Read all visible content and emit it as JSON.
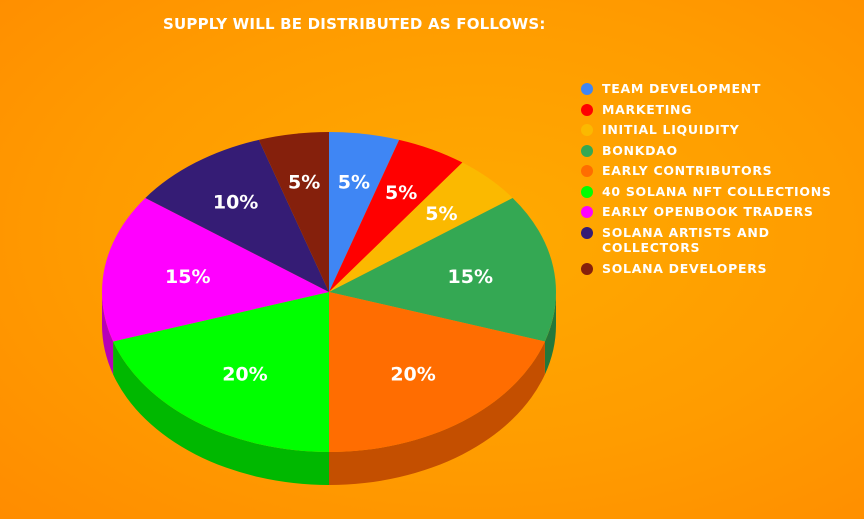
{
  "page": {
    "title": "SUPPLY WILL BE DISTRIBUTED AS FOLLOWS:"
  },
  "chart_data": {
    "type": "pie",
    "style": "3d",
    "categories": [
      "TEAM DEVELOPMENT",
      "MARKETING",
      "INITIAL LIQUIDITY",
      "BONKDAO",
      "EARLY CONTRIBUTORS",
      "40 SOLANA NFT COLLECTIONS",
      "EARLY OPENBOOK TRADERS",
      "SOLANA ARTISTS AND COLLECTORS",
      "SOLANA DEVELOPERS"
    ],
    "values": [
      5,
      5,
      5,
      15,
      20,
      20,
      15,
      10,
      5
    ],
    "labels": [
      "5%",
      "5%",
      "5%",
      "15%",
      "20%",
      "20%",
      "15%",
      "10%",
      "5%"
    ],
    "colors": [
      "#3f86f4",
      "#ff0000",
      "#fbb900",
      "#34a853",
      "#ff6d01",
      "#00ff00",
      "#ff00ff",
      "#351c75",
      "#85200c"
    ],
    "side_colors": [
      "#2f64b8",
      "#c00000",
      "#c48f00",
      "#24783b",
      "#c44f00",
      "#00b800",
      "#b800b8",
      "#221149",
      "#5e1608"
    ],
    "legend_position": "right"
  }
}
